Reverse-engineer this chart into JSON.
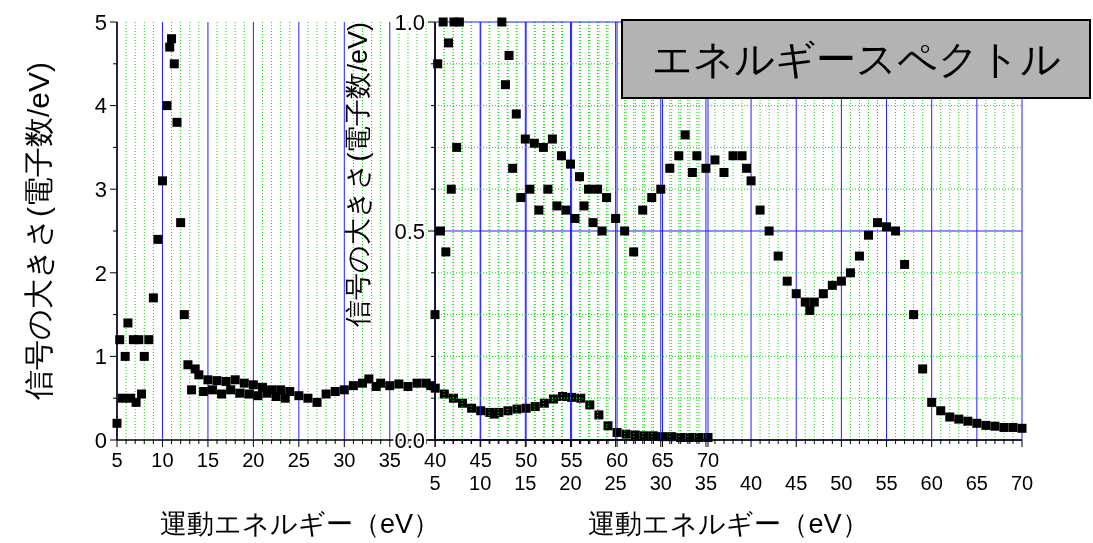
{
  "chart_data": [
    {
      "type": "scatter",
      "ylabel": "信号の大きさ(電子数/eV)",
      "xlabel": "運動エネルギー（eV）",
      "marker": "square",
      "grid": "x",
      "xlim": [
        5,
        70
      ],
      "xticks": [
        5,
        {
          "value": 6,
          "label": null
        },
        {
          "value": 7,
          "label": null
        },
        {
          "value": 8,
          "label": null
        },
        {
          "value": 9,
          "label": null
        },
        10,
        {
          "value": 11,
          "label": null
        },
        {
          "value": 12,
          "label": null
        },
        {
          "value": 13,
          "label": null
        },
        {
          "value": 14,
          "label": null
        },
        15,
        {
          "value": 16,
          "label": null
        },
        {
          "value": 17,
          "label": null
        },
        {
          "value": 18,
          "label": null
        },
        {
          "value": 19,
          "label": null
        },
        20,
        {
          "value": 21,
          "label": null
        },
        {
          "value": 22,
          "label": null
        },
        {
          "value": 23,
          "label": null
        },
        {
          "value": 24,
          "label": null
        },
        25,
        {
          "value": 26,
          "label": null
        },
        {
          "value": 27,
          "label": null
        },
        {
          "value": 28,
          "label": null
        },
        {
          "value": 29,
          "label": null
        },
        30,
        {
          "value": 31,
          "label": null
        },
        {
          "value": 32,
          "label": null
        },
        {
          "value": 33,
          "label": null
        },
        {
          "value": 34,
          "label": null
        },
        35,
        {
          "value": 36,
          "label": null
        },
        {
          "value": 37,
          "label": null
        },
        {
          "value": 38,
          "label": null
        },
        {
          "value": 39,
          "label": null
        },
        40,
        {
          "value": 41,
          "label": null
        },
        {
          "value": 42,
          "label": null
        },
        {
          "value": 43,
          "label": null
        },
        {
          "value": 44,
          "label": null
        },
        45,
        {
          "value": 46,
          "label": null
        },
        {
          "value": 47,
          "label": null
        },
        {
          "value": 48,
          "label": null
        },
        {
          "value": 49,
          "label": null
        },
        50,
        {
          "value": 51,
          "label": null
        },
        {
          "value": 52,
          "label": null
        },
        {
          "value": 53,
          "label": null
        },
        {
          "value": 54,
          "label": null
        },
        55,
        {
          "value": 56,
          "label": null
        },
        {
          "value": 57,
          "label": null
        },
        {
          "value": 58,
          "label": null
        },
        {
          "value": 59,
          "label": null
        },
        60,
        {
          "value": 61,
          "label": null
        },
        {
          "value": 62,
          "label": null
        },
        {
          "value": 63,
          "label": null
        },
        {
          "value": 64,
          "label": null
        },
        65,
        {
          "value": 66,
          "label": null
        },
        {
          "value": 67,
          "label": null
        },
        {
          "value": 68,
          "label": null
        },
        {
          "value": 69,
          "label": null
        },
        70
      ],
      "ylim": [
        0,
        5
      ],
      "yticks": [
        0,
        {
          "value": 0.5,
          "label": null
        },
        1,
        {
          "value": 1.5,
          "label": null
        },
        2,
        {
          "value": 2.5,
          "label": null
        },
        3,
        {
          "value": 3.5,
          "label": null
        },
        4,
        {
          "value": 4.5,
          "label": null
        },
        5
      ],
      "series": [
        {
          "color": "#000000",
          "x": [
            5,
            5.3,
            5.6,
            5.9,
            6.2,
            6.5,
            6.8,
            7.1,
            7.4,
            7.7,
            8,
            8.5,
            9,
            9.5,
            10,
            10.5,
            10.8,
            11,
            11.3,
            11.6,
            12,
            12.4,
            12.8,
            13.2,
            13.6,
            14,
            14.5,
            15,
            15.5,
            16,
            16.5,
            17,
            17.5,
            18,
            18.5,
            19,
            19.5,
            20,
            20.5,
            21,
            21.5,
            22,
            22.5,
            23,
            23.5,
            24,
            25,
            26,
            27,
            28,
            29,
            30,
            31,
            32,
            32.7,
            33.5,
            34,
            35,
            36,
            37,
            38,
            39,
            39.5,
            40,
            41,
            42,
            43,
            44,
            45,
            46,
            46.5,
            47,
            48,
            49,
            50,
            51,
            52,
            53,
            54,
            55,
            56,
            57,
            58,
            59,
            60,
            61,
            62,
            63,
            64,
            65,
            66,
            67,
            68,
            69,
            70
          ],
          "values": [
            0.2,
            1.2,
            0.5,
            1.0,
            1.4,
            0.5,
            1.2,
            0.45,
            1.2,
            0.55,
            1.0,
            1.2,
            1.7,
            2.4,
            3.1,
            4.0,
            4.7,
            4.8,
            4.5,
            3.8,
            2.6,
            1.5,
            0.9,
            0.6,
            0.85,
            0.78,
            0.58,
            0.72,
            0.6,
            0.71,
            0.55,
            0.7,
            0.6,
            0.72,
            0.56,
            0.68,
            0.55,
            0.66,
            0.53,
            0.63,
            0.56,
            0.6,
            0.52,
            0.6,
            0.5,
            0.58,
            0.53,
            0.5,
            0.45,
            0.55,
            0.58,
            0.6,
            0.65,
            0.68,
            0.73,
            0.64,
            0.68,
            0.65,
            0.67,
            0.64,
            0.68,
            0.68,
            0.65,
            0.62,
            0.55,
            0.5,
            0.44,
            0.38,
            0.35,
            0.33,
            0.31,
            0.33,
            0.35,
            0.37,
            0.38,
            0.4,
            0.44,
            0.49,
            0.52,
            0.51,
            0.5,
            0.42,
            0.3,
            0.17,
            0.09,
            0.07,
            0.06,
            0.05,
            0.05,
            0.04,
            0.04,
            0.03,
            0.03,
            0.03,
            0.03
          ]
        }
      ]
    },
    {
      "type": "scatter",
      "title": "エネルギースペクトル",
      "ylabel": "信号の大きさ(電子数/eV)",
      "xlabel": "運動エネルギー（eV）",
      "marker": "square",
      "grid": true,
      "xlim": [
        5,
        70
      ],
      "xticks": [
        5,
        {
          "value": 6,
          "label": null
        },
        {
          "value": 7,
          "label": null
        },
        {
          "value": 8,
          "label": null
        },
        {
          "value": 9,
          "label": null
        },
        10,
        {
          "value": 11,
          "label": null
        },
        {
          "value": 12,
          "label": null
        },
        {
          "value": 13,
          "label": null
        },
        {
          "value": 14,
          "label": null
        },
        15,
        {
          "value": 16,
          "label": null
        },
        {
          "value": 17,
          "label": null
        },
        {
          "value": 18,
          "label": null
        },
        {
          "value": 19,
          "label": null
        },
        20,
        {
          "value": 21,
          "label": null
        },
        {
          "value": 22,
          "label": null
        },
        {
          "value": 23,
          "label": null
        },
        {
          "value": 24,
          "label": null
        },
        25,
        {
          "value": 26,
          "label": null
        },
        {
          "value": 27,
          "label": null
        },
        {
          "value": 28,
          "label": null
        },
        {
          "value": 29,
          "label": null
        },
        30,
        {
          "value": 31,
          "label": null
        },
        {
          "value": 32,
          "label": null
        },
        {
          "value": 33,
          "label": null
        },
        {
          "value": 34,
          "label": null
        },
        35,
        {
          "value": 36,
          "label": null
        },
        {
          "value": 37,
          "label": null
        },
        {
          "value": 38,
          "label": null
        },
        {
          "value": 39,
          "label": null
        },
        40,
        {
          "value": 41,
          "label": null
        },
        {
          "value": 42,
          "label": null
        },
        {
          "value": 43,
          "label": null
        },
        {
          "value": 44,
          "label": null
        },
        45,
        {
          "value": 46,
          "label": null
        },
        {
          "value": 47,
          "label": null
        },
        {
          "value": 48,
          "label": null
        },
        {
          "value": 49,
          "label": null
        },
        50,
        {
          "value": 51,
          "label": null
        },
        {
          "value": 52,
          "label": null
        },
        {
          "value": 53,
          "label": null
        },
        {
          "value": 54,
          "label": null
        },
        55,
        {
          "value": 56,
          "label": null
        },
        {
          "value": 57,
          "label": null
        },
        {
          "value": 58,
          "label": null
        },
        {
          "value": 59,
          "label": null
        },
        60,
        {
          "value": 61,
          "label": null
        },
        {
          "value": 62,
          "label": null
        },
        {
          "value": 63,
          "label": null
        },
        {
          "value": 64,
          "label": null
        },
        65,
        {
          "value": 66,
          "label": null
        },
        {
          "value": 67,
          "label": null
        },
        {
          "value": 68,
          "label": null
        },
        {
          "value": 69,
          "label": null
        },
        70
      ],
      "ylim": [
        0,
        1
      ],
      "yticks": [
        {
          "value": 0,
          "label": "0.0"
        },
        {
          "value": 0.1,
          "label": null
        },
        {
          "value": 0.2,
          "label": null
        },
        {
          "value": 0.3,
          "label": null
        },
        {
          "value": 0.4,
          "label": null
        },
        {
          "value": 0.5,
          "label": "0.5"
        },
        {
          "value": 0.6,
          "label": null
        },
        {
          "value": 0.7,
          "label": null
        },
        {
          "value": 0.8,
          "label": null
        },
        {
          "value": 0.9,
          "label": null
        },
        {
          "value": 1,
          "label": "1.0"
        }
      ],
      "series": [
        {
          "color": "#000000",
          "x": [
            5,
            5.3,
            5.6,
            5.9,
            6.2,
            6.5,
            6.8,
            7.1,
            7.4,
            7.7,
            12.4,
            12.8,
            13.2,
            13.6,
            14,
            14.5,
            15,
            15.5,
            16,
            16.5,
            17,
            17.5,
            18,
            18.5,
            19,
            19.5,
            20,
            20.5,
            21,
            21.5,
            22,
            22.5,
            23,
            23.5,
            24,
            25,
            26,
            27,
            28,
            29,
            30,
            31,
            32,
            32.7,
            33.5,
            34,
            35,
            36,
            37,
            38,
            39,
            39.5,
            40,
            41,
            42,
            43,
            44,
            45,
            46,
            46.5,
            47,
            48,
            49,
            50,
            51,
            52,
            53,
            54,
            55,
            56,
            57,
            58,
            59,
            60,
            61,
            62,
            63,
            64,
            65,
            66,
            67,
            68,
            69,
            70
          ],
          "values": [
            0.3,
            0.9,
            0.5,
            1.0,
            0.45,
            0.95,
            0.6,
            1.0,
            0.7,
            1.0,
            1.0,
            0.85,
            0.92,
            0.65,
            0.78,
            0.58,
            0.72,
            0.6,
            0.71,
            0.55,
            0.7,
            0.6,
            0.72,
            0.56,
            0.68,
            0.55,
            0.66,
            0.53,
            0.63,
            0.56,
            0.6,
            0.52,
            0.6,
            0.5,
            0.58,
            0.53,
            0.5,
            0.45,
            0.55,
            0.58,
            0.6,
            0.65,
            0.68,
            0.73,
            0.64,
            0.68,
            0.65,
            0.67,
            0.64,
            0.68,
            0.68,
            0.65,
            0.62,
            0.55,
            0.5,
            0.44,
            0.38,
            0.35,
            0.33,
            0.31,
            0.33,
            0.35,
            0.37,
            0.38,
            0.4,
            0.44,
            0.49,
            0.52,
            0.51,
            0.5,
            0.42,
            0.3,
            0.17,
            0.09,
            0.07,
            0.055,
            0.05,
            0.045,
            0.04,
            0.035,
            0.033,
            0.03,
            0.03,
            0.028
          ]
        }
      ]
    }
  ]
}
